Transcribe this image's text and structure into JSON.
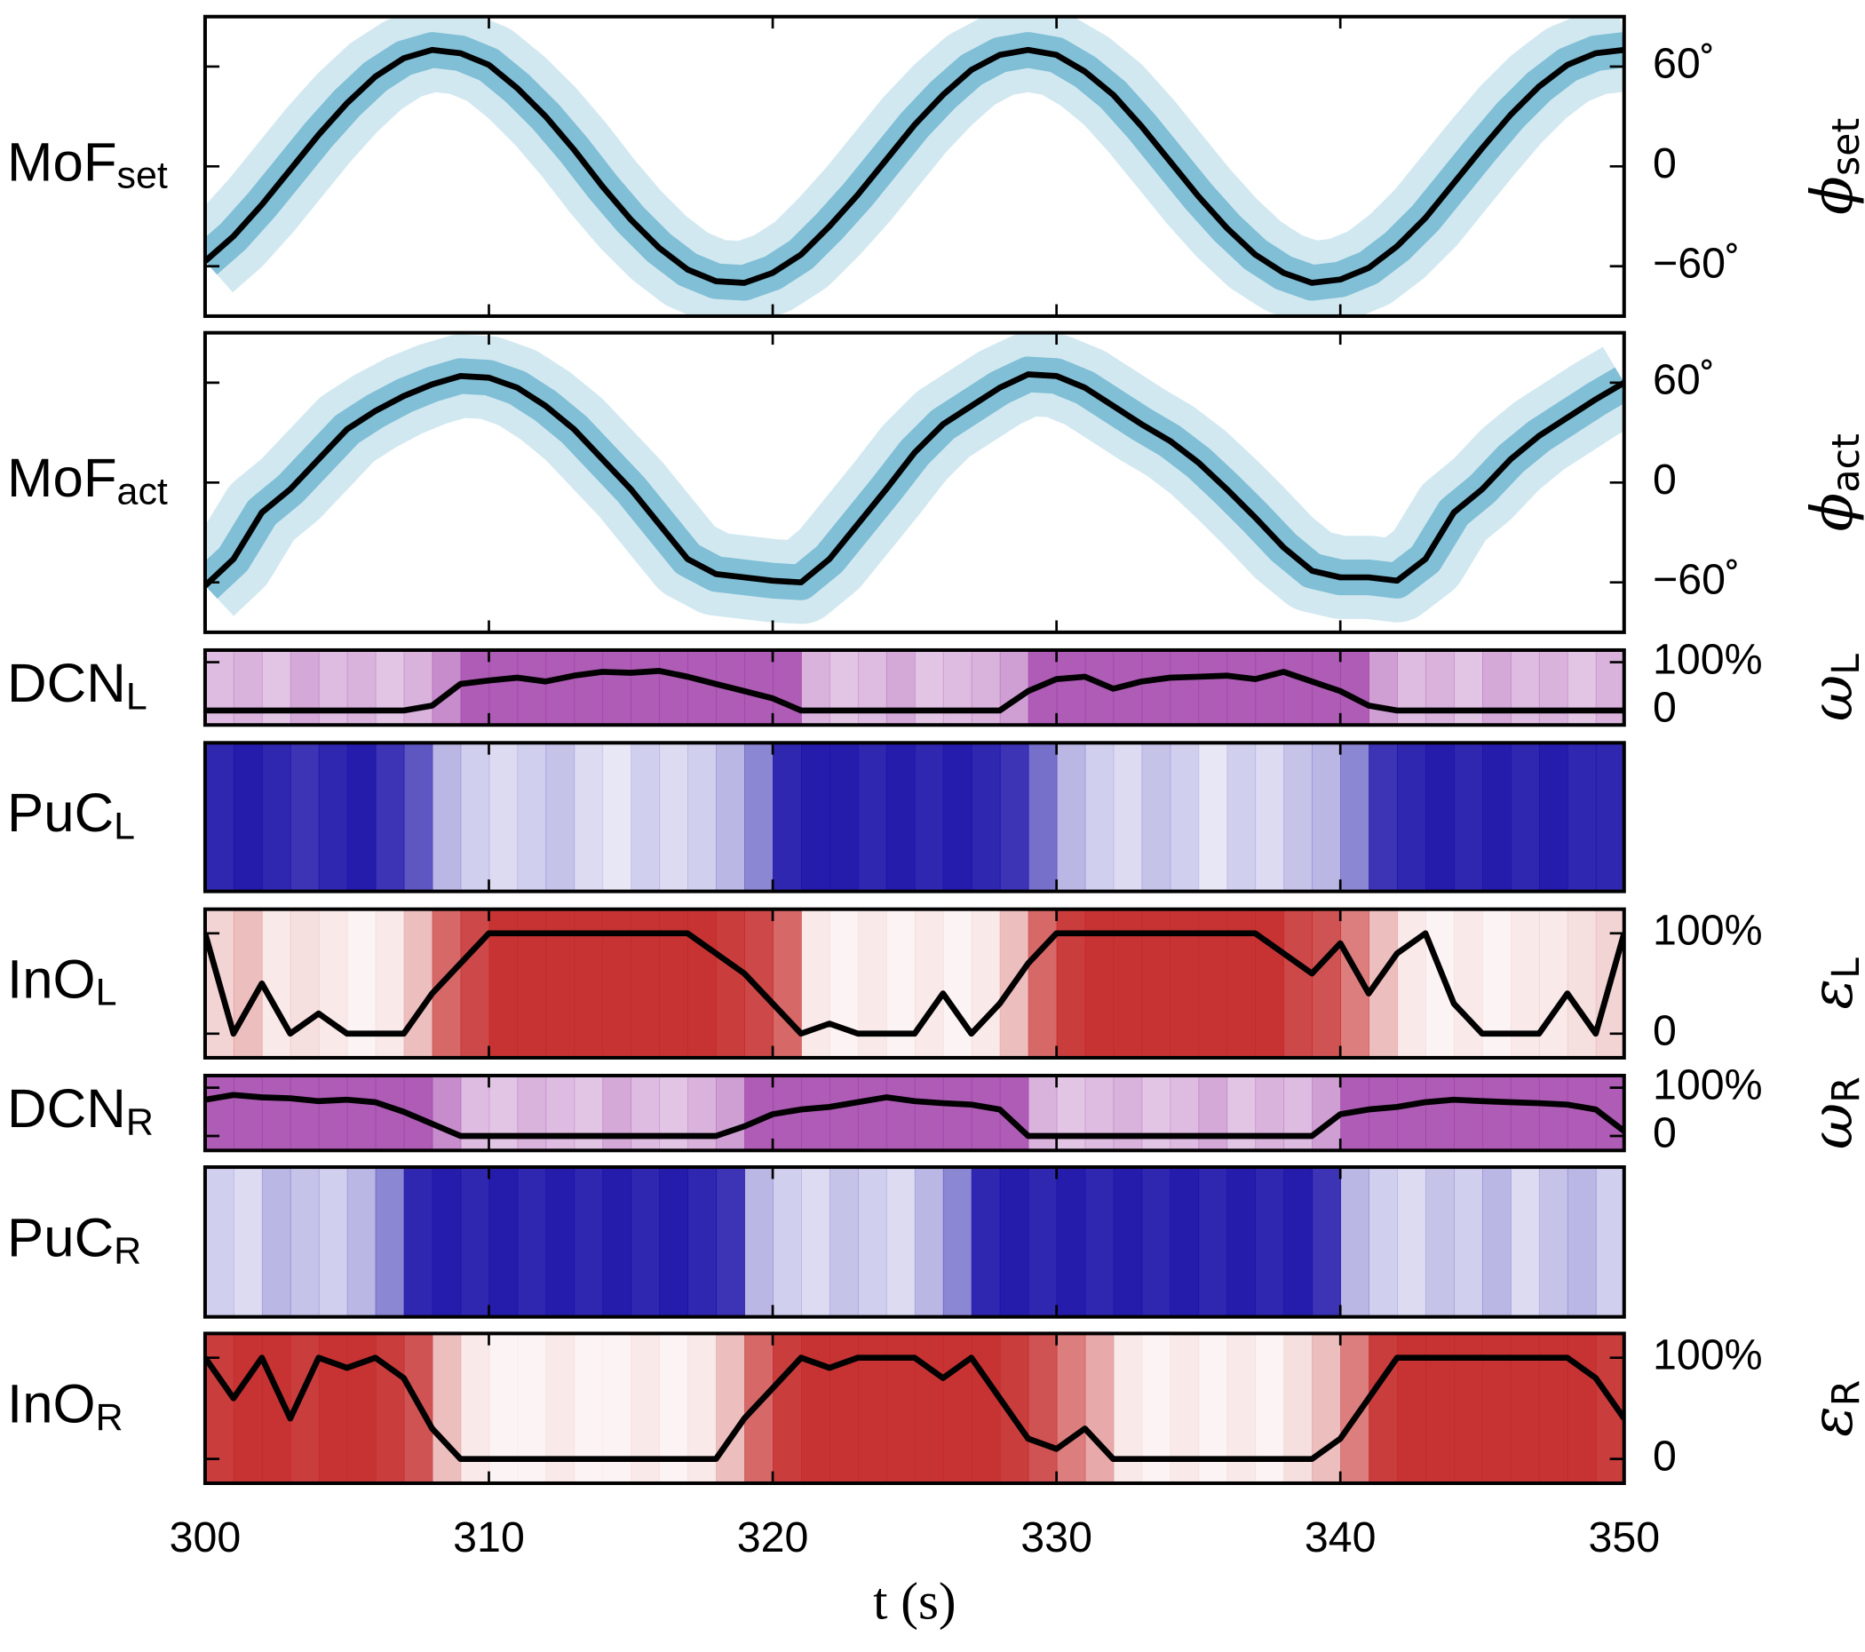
{
  "chart_data": [
    {
      "type": "line",
      "label": "MoF",
      "label_sub": "set",
      "ylabel": "ϕ",
      "ylabel_sub": "set",
      "xlim": [
        300,
        350
      ],
      "ylim": [
        -90,
        90
      ],
      "yticks": [
        {
          "value": 60,
          "label": "60˚"
        },
        0,
        {
          "value": -60,
          "label": "−60˚"
        }
      ],
      "color": "#000000",
      "band_color": "#4aa3c4",
      "x": [
        300,
        301,
        302,
        303,
        304,
        305,
        306,
        307,
        308,
        309,
        310,
        311,
        312,
        313,
        314,
        315,
        316,
        317,
        318,
        319,
        320,
        321,
        322,
        323,
        324,
        325,
        326,
        327,
        328,
        329,
        330,
        331,
        332,
        333,
        334,
        335,
        336,
        337,
        338,
        339,
        340,
        341,
        342,
        343,
        344,
        345,
        346,
        347,
        348,
        349,
        350
      ],
      "values": [
        -57,
        -42,
        -23,
        -2,
        19,
        38,
        54,
        65,
        70,
        68,
        61,
        47,
        30,
        10,
        -12,
        -32,
        -49,
        -62,
        -69,
        -70,
        -64,
        -53,
        -36,
        -17,
        4,
        25,
        43,
        58,
        67,
        70,
        67,
        57,
        43,
        24,
        3,
        -18,
        -37,
        -53,
        -64,
        -70,
        -68,
        -61,
        -48,
        -31,
        -10,
        11,
        31,
        48,
        61,
        68,
        70
      ]
    },
    {
      "type": "line",
      "label": "MoF",
      "label_sub": "act",
      "ylabel": "ϕ",
      "ylabel_sub": "act",
      "xlim": [
        300,
        350
      ],
      "ylim": [
        -90,
        90
      ],
      "yticks": [
        {
          "value": 60,
          "label": "60˚"
        },
        0,
        {
          "value": -60,
          "label": "−60˚"
        }
      ],
      "color": "#000000",
      "band_color": "#4aa3c4",
      "x": [
        300,
        301,
        302,
        303,
        304,
        305,
        306,
        307,
        308,
        309,
        310,
        311,
        312,
        313,
        314,
        315,
        316,
        317,
        318,
        319,
        320,
        321,
        322,
        323,
        324,
        325,
        326,
        327,
        328,
        329,
        330,
        331,
        332,
        333,
        334,
        335,
        336,
        337,
        338,
        339,
        340,
        341,
        342,
        343,
        344,
        345,
        346,
        347,
        348,
        349,
        350
      ],
      "values": [
        -62,
        -46,
        -18,
        -4,
        14,
        32,
        43,
        52,
        59,
        64,
        63,
        57,
        46,
        32,
        14,
        -4,
        -25,
        -46,
        -55,
        -57,
        -59,
        -60,
        -46,
        -25,
        -4,
        18,
        35,
        46,
        57,
        65,
        64,
        57,
        46,
        35,
        25,
        12,
        -4,
        -21,
        -39,
        -53,
        -57,
        -57,
        -59,
        -46,
        -18,
        -4,
        14,
        28,
        39,
        50,
        60
      ]
    },
    {
      "type": "line",
      "label": "DCN",
      "label_sub": "L",
      "ylabel": "ω",
      "ylabel_sub": "L",
      "xlim": [
        300,
        350
      ],
      "ylim": [
        -30,
        125
      ],
      "yticks": [
        {
          "value": 100,
          "label": "100%"
        },
        0
      ],
      "color": "#000000",
      "heat_color": "#a040a8",
      "heat": [
        0.35,
        0.4,
        0.3,
        0.45,
        0.35,
        0.4,
        0.3,
        0.4,
        0.6,
        0.85,
        0.85,
        0.85,
        0.85,
        0.85,
        0.85,
        0.85,
        0.85,
        0.85,
        0.85,
        0.85,
        0.85,
        0.4,
        0.3,
        0.35,
        0.45,
        0.3,
        0.35,
        0.4,
        0.5,
        0.85,
        0.85,
        0.85,
        0.85,
        0.85,
        0.85,
        0.85,
        0.85,
        0.85,
        0.85,
        0.85,
        0.85,
        0.5,
        0.35,
        0.4,
        0.3,
        0.45,
        0.35,
        0.4,
        0.3,
        0.4
      ],
      "x": [
        300,
        301,
        302,
        303,
        304,
        305,
        306,
        307,
        308,
        309,
        310,
        311,
        312,
        313,
        314,
        315,
        316,
        317,
        318,
        319,
        320,
        321,
        322,
        323,
        324,
        325,
        326,
        327,
        328,
        329,
        330,
        331,
        332,
        333,
        334,
        335,
        336,
        337,
        338,
        339,
        340,
        341,
        342,
        343,
        344,
        345,
        346,
        347,
        348,
        349,
        350
      ],
      "values": [
        0,
        0,
        0,
        0,
        0,
        0,
        0,
        0,
        10,
        55,
        62,
        68,
        60,
        72,
        80,
        78,
        82,
        70,
        55,
        40,
        25,
        0,
        0,
        0,
        0,
        0,
        0,
        0,
        0,
        40,
        65,
        70,
        45,
        60,
        68,
        70,
        72,
        65,
        80,
        60,
        40,
        10,
        0,
        0,
        0,
        0,
        0,
        0,
        0,
        0,
        0
      ]
    },
    {
      "type": "heatmap",
      "label": "PuC",
      "label_sub": "L",
      "xlim": [
        300,
        350
      ],
      "heat_color": "#1a10a8",
      "heat": [
        0.9,
        0.95,
        0.9,
        0.85,
        0.9,
        0.95,
        0.85,
        0.7,
        0.3,
        0.2,
        0.15,
        0.2,
        0.25,
        0.15,
        0.1,
        0.2,
        0.15,
        0.2,
        0.3,
        0.5,
        0.9,
        0.95,
        0.95,
        0.9,
        0.95,
        0.9,
        0.95,
        0.9,
        0.85,
        0.6,
        0.3,
        0.2,
        0.15,
        0.25,
        0.2,
        0.1,
        0.2,
        0.15,
        0.25,
        0.3,
        0.5,
        0.85,
        0.9,
        0.95,
        0.9,
        0.95,
        0.9,
        0.95,
        0.9,
        0.9
      ]
    },
    {
      "type": "line",
      "label": "InO",
      "label_sub": "L",
      "ylabel": "ε",
      "ylabel_sub": "L",
      "xlim": [
        300,
        350
      ],
      "ylim": [
        -24,
        124
      ],
      "yticks": [
        {
          "value": 100,
          "label": "100%"
        },
        0
      ],
      "color": "#000000",
      "heat_color": "#c42828",
      "heat": [
        0.2,
        0.3,
        0.1,
        0.15,
        0.1,
        0.05,
        0.1,
        0.3,
        0.7,
        0.85,
        0.95,
        0.95,
        0.95,
        0.95,
        0.95,
        0.95,
        0.95,
        0.95,
        0.9,
        0.85,
        0.7,
        0.1,
        0.05,
        0.1,
        0.05,
        0.1,
        0.05,
        0.1,
        0.3,
        0.7,
        0.9,
        0.95,
        0.95,
        0.95,
        0.95,
        0.95,
        0.95,
        0.95,
        0.85,
        0.8,
        0.6,
        0.3,
        0.1,
        0.05,
        0.1,
        0.05,
        0.1,
        0.1,
        0.15,
        0.2
      ],
      "x": [
        300,
        301,
        302,
        303,
        304,
        305,
        306,
        307,
        308,
        309,
        310,
        311,
        312,
        313,
        314,
        315,
        316,
        317,
        318,
        319,
        320,
        321,
        322,
        323,
        324,
        325,
        326,
        327,
        328,
        329,
        330,
        331,
        332,
        333,
        334,
        335,
        336,
        337,
        338,
        339,
        340,
        341,
        342,
        343,
        344,
        345,
        346,
        347,
        348,
        349,
        350
      ],
      "values": [
        100,
        0,
        50,
        0,
        20,
        0,
        0,
        0,
        40,
        70,
        100,
        100,
        100,
        100,
        100,
        100,
        100,
        100,
        80,
        60,
        30,
        0,
        10,
        0,
        0,
        0,
        40,
        0,
        30,
        70,
        100,
        100,
        100,
        100,
        100,
        100,
        100,
        100,
        80,
        60,
        90,
        40,
        80,
        100,
        30,
        0,
        0,
        0,
        40,
        0,
        100
      ]
    },
    {
      "type": "line",
      "label": "DCN",
      "label_sub": "R",
      "ylabel": "ω",
      "ylabel_sub": "R",
      "xlim": [
        300,
        350
      ],
      "ylim": [
        -30,
        125
      ],
      "yticks": [
        {
          "value": 100,
          "label": "100%"
        },
        0
      ],
      "color": "#000000",
      "heat_color": "#a040a8",
      "heat": [
        0.85,
        0.85,
        0.85,
        0.85,
        0.85,
        0.85,
        0.85,
        0.85,
        0.6,
        0.35,
        0.3,
        0.4,
        0.35,
        0.3,
        0.45,
        0.35,
        0.3,
        0.4,
        0.5,
        0.85,
        0.85,
        0.85,
        0.85,
        0.85,
        0.85,
        0.85,
        0.85,
        0.85,
        0.85,
        0.4,
        0.3,
        0.35,
        0.4,
        0.3,
        0.35,
        0.45,
        0.3,
        0.4,
        0.35,
        0.5,
        0.85,
        0.85,
        0.85,
        0.85,
        0.85,
        0.85,
        0.85,
        0.85,
        0.85,
        0.85
      ],
      "x": [
        300,
        301,
        302,
        303,
        304,
        305,
        306,
        307,
        308,
        309,
        310,
        311,
        312,
        313,
        314,
        315,
        316,
        317,
        318,
        319,
        320,
        321,
        322,
        323,
        324,
        325,
        326,
        327,
        328,
        329,
        330,
        331,
        332,
        333,
        334,
        335,
        336,
        337,
        338,
        339,
        340,
        341,
        342,
        343,
        344,
        345,
        346,
        347,
        348,
        349,
        350
      ],
      "values": [
        75,
        85,
        80,
        78,
        72,
        75,
        70,
        50,
        25,
        0,
        0,
        0,
        0,
        0,
        0,
        0,
        0,
        0,
        0,
        20,
        45,
        55,
        60,
        70,
        80,
        72,
        68,
        65,
        55,
        0,
        0,
        0,
        0,
        0,
        0,
        0,
        0,
        0,
        0,
        0,
        45,
        55,
        60,
        70,
        75,
        72,
        70,
        68,
        65,
        55,
        10
      ]
    },
    {
      "type": "heatmap",
      "label": "PuC",
      "label_sub": "R",
      "xlim": [
        300,
        350
      ],
      "heat_color": "#1a10a8",
      "heat": [
        0.2,
        0.15,
        0.3,
        0.25,
        0.2,
        0.3,
        0.5,
        0.9,
        0.95,
        0.9,
        0.95,
        0.9,
        0.95,
        0.9,
        0.95,
        0.9,
        0.95,
        0.9,
        0.85,
        0.3,
        0.2,
        0.15,
        0.25,
        0.2,
        0.15,
        0.3,
        0.5,
        0.9,
        0.95,
        0.9,
        0.95,
        0.9,
        0.95,
        0.9,
        0.95,
        0.9,
        0.95,
        0.9,
        0.95,
        0.85,
        0.3,
        0.2,
        0.15,
        0.25,
        0.2,
        0.3,
        0.15,
        0.25,
        0.3,
        0.2
      ]
    },
    {
      "type": "line",
      "label": "InO",
      "label_sub": "R",
      "ylabel": "ε",
      "ylabel_sub": "R",
      "xlim": [
        300,
        350
      ],
      "ylim": [
        -24,
        124
      ],
      "yticks": [
        {
          "value": 100,
          "label": "100%"
        },
        0
      ],
      "xticks": [
        300,
        310,
        320,
        330,
        340,
        350
      ],
      "xlabel": "t (s)",
      "color": "#000000",
      "heat_color": "#c42828",
      "heat": [
        0.9,
        0.95,
        0.95,
        0.9,
        0.95,
        0.95,
        0.9,
        0.8,
        0.3,
        0.1,
        0.05,
        0.05,
        0.1,
        0.05,
        0.05,
        0.1,
        0.05,
        0.1,
        0.3,
        0.7,
        0.9,
        0.95,
        0.95,
        0.95,
        0.95,
        0.95,
        0.95,
        0.95,
        0.9,
        0.8,
        0.6,
        0.4,
        0.1,
        0.05,
        0.1,
        0.05,
        0.1,
        0.05,
        0.15,
        0.3,
        0.6,
        0.9,
        0.95,
        0.95,
        0.95,
        0.95,
        0.95,
        0.95,
        0.95,
        0.9
      ],
      "x": [
        300,
        301,
        302,
        303,
        304,
        305,
        306,
        307,
        308,
        309,
        310,
        311,
        312,
        313,
        314,
        315,
        316,
        317,
        318,
        319,
        320,
        321,
        322,
        323,
        324,
        325,
        326,
        327,
        328,
        329,
        330,
        331,
        332,
        333,
        334,
        335,
        336,
        337,
        338,
        339,
        340,
        341,
        342,
        343,
        344,
        345,
        346,
        347,
        348,
        349,
        350
      ],
      "values": [
        100,
        60,
        100,
        40,
        100,
        90,
        100,
        80,
        30,
        0,
        0,
        0,
        0,
        0,
        0,
        0,
        0,
        0,
        0,
        40,
        70,
        100,
        90,
        100,
        100,
        100,
        80,
        100,
        60,
        20,
        10,
        30,
        0,
        0,
        0,
        0,
        0,
        0,
        0,
        0,
        20,
        60,
        100,
        100,
        100,
        100,
        100,
        100,
        100,
        80,
        40
      ]
    }
  ]
}
